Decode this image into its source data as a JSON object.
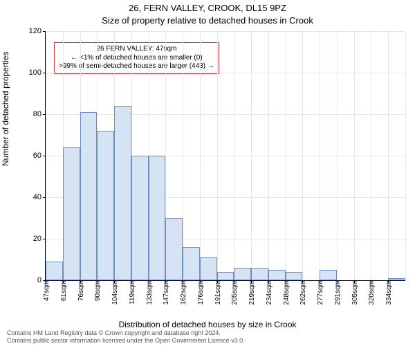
{
  "title_main": "26, FERN VALLEY, CROOK, DL15 9PZ",
  "title_sub": "Size of property relative to detached houses in Crook",
  "y_label": "Number of detached properties",
  "x_label": "Distribution of detached houses by size in Crook",
  "attribution_line1": "Contains HM Land Registry data © Crown copyright and database right 2024.",
  "attribution_line2": "Contains public sector information licensed under the Open Government Licence v3.0.",
  "chart": {
    "type": "histogram",
    "ylim": [
      0,
      120
    ],
    "ytick_step": 20,
    "background_color": "#ffffff",
    "grid_color": "#e6e6e6",
    "bar_fill": "#d6e3f3",
    "bar_border": "#6a8fc5",
    "annotation_border": "#cc3333",
    "categories": [
      "47sqm",
      "61sqm",
      "76sqm",
      "90sqm",
      "104sqm",
      "119sqm",
      "133sqm",
      "147sqm",
      "162sqm",
      "176sqm",
      "191sqm",
      "205sqm",
      "219sqm",
      "234sqm",
      "248sqm",
      "262sqm",
      "277sqm",
      "291sqm",
      "305sqm",
      "320sqm",
      "334sqm"
    ],
    "values": [
      9,
      64,
      81,
      72,
      84,
      60,
      60,
      30,
      16,
      11,
      4,
      6,
      6,
      5,
      4,
      0,
      5,
      0,
      0,
      0,
      1
    ]
  },
  "annotation": {
    "line1": "26 FERN VALLEY: 47sqm",
    "line2": "← <1% of detached houses are smaller (0)",
    "line3": ">99% of semi-detached houses are larger (443) →"
  }
}
